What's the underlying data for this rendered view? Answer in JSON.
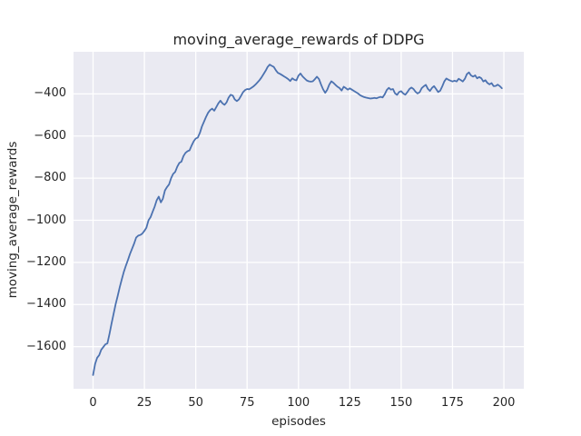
{
  "chart": {
    "title": "moving_average_rewards of DDPG",
    "xlabel": "episodes",
    "ylabel": "moving_average_rewards"
  },
  "chart_data": {
    "type": "line",
    "title": "moving_average_rewards of DDPG",
    "xlabel": "episodes",
    "ylabel": "moving_average_rewards",
    "xlim": [
      -9.5,
      209.7
    ],
    "ylim": [
      -1800,
      -200
    ],
    "grid": true,
    "legend": "none",
    "style": {
      "fig_bg": "#ffffff",
      "axes_bg": "#EAEAF2",
      "grid_color": "#ffffff",
      "grid_width": 1.3,
      "text_color": "#262626",
      "line_width": 1.8
    },
    "xticks": {
      "values": [
        0,
        25,
        50,
        75,
        100,
        125,
        150,
        175,
        200
      ],
      "labels": [
        "0",
        "25",
        "50",
        "75",
        "100",
        "125",
        "150",
        "175",
        "200"
      ]
    },
    "yticks": {
      "values": [
        -400,
        -600,
        -800,
        -1000,
        -1200,
        -1400,
        -1600
      ],
      "labels": [
        "−400",
        "−600",
        "−800",
        "−1000",
        "−1200",
        "−1400",
        "−1600"
      ]
    },
    "series": [
      {
        "name": "moving_average_rewards",
        "color": "#4C72B0",
        "x_start": 0,
        "x_step": 1,
        "values": [
          -1735,
          -1682,
          -1653,
          -1640,
          -1615,
          -1602,
          -1589,
          -1585,
          -1540,
          -1490,
          -1445,
          -1398,
          -1360,
          -1318,
          -1280,
          -1245,
          -1215,
          -1188,
          -1160,
          -1135,
          -1110,
          -1082,
          -1073,
          -1070,
          -1063,
          -1050,
          -1035,
          -1000,
          -985,
          -960,
          -935,
          -905,
          -888,
          -915,
          -898,
          -858,
          -842,
          -830,
          -800,
          -780,
          -770,
          -745,
          -728,
          -722,
          -695,
          -680,
          -672,
          -668,
          -645,
          -625,
          -612,
          -607,
          -585,
          -555,
          -532,
          -510,
          -490,
          -477,
          -470,
          -480,
          -462,
          -445,
          -432,
          -445,
          -452,
          -440,
          -418,
          -404,
          -408,
          -426,
          -434,
          -426,
          -410,
          -392,
          -382,
          -377,
          -378,
          -372,
          -365,
          -356,
          -346,
          -335,
          -322,
          -306,
          -290,
          -272,
          -261,
          -267,
          -272,
          -288,
          -300,
          -305,
          -311,
          -317,
          -323,
          -330,
          -339,
          -326,
          -333,
          -336,
          -313,
          -303,
          -317,
          -327,
          -336,
          -340,
          -342,
          -340,
          -330,
          -318,
          -330,
          -356,
          -378,
          -395,
          -380,
          -356,
          -340,
          -347,
          -357,
          -366,
          -372,
          -384,
          -366,
          -372,
          -380,
          -374,
          -380,
          -386,
          -392,
          -398,
          -406,
          -411,
          -415,
          -418,
          -420,
          -422,
          -421,
          -419,
          -421,
          -417,
          -414,
          -417,
          -402,
          -381,
          -371,
          -380,
          -377,
          -397,
          -405,
          -391,
          -387,
          -398,
          -404,
          -392,
          -377,
          -370,
          -377,
          -390,
          -398,
          -392,
          -373,
          -364,
          -357,
          -376,
          -386,
          -371,
          -363,
          -377,
          -391,
          -385,
          -364,
          -341,
          -327,
          -333,
          -337,
          -341,
          -337,
          -341,
          -328,
          -334,
          -341,
          -328,
          -306,
          -298,
          -312,
          -318,
          -312,
          -326,
          -320,
          -326,
          -341,
          -335,
          -348,
          -355,
          -349,
          -363,
          -362,
          -356,
          -363,
          -373
        ]
      }
    ]
  }
}
